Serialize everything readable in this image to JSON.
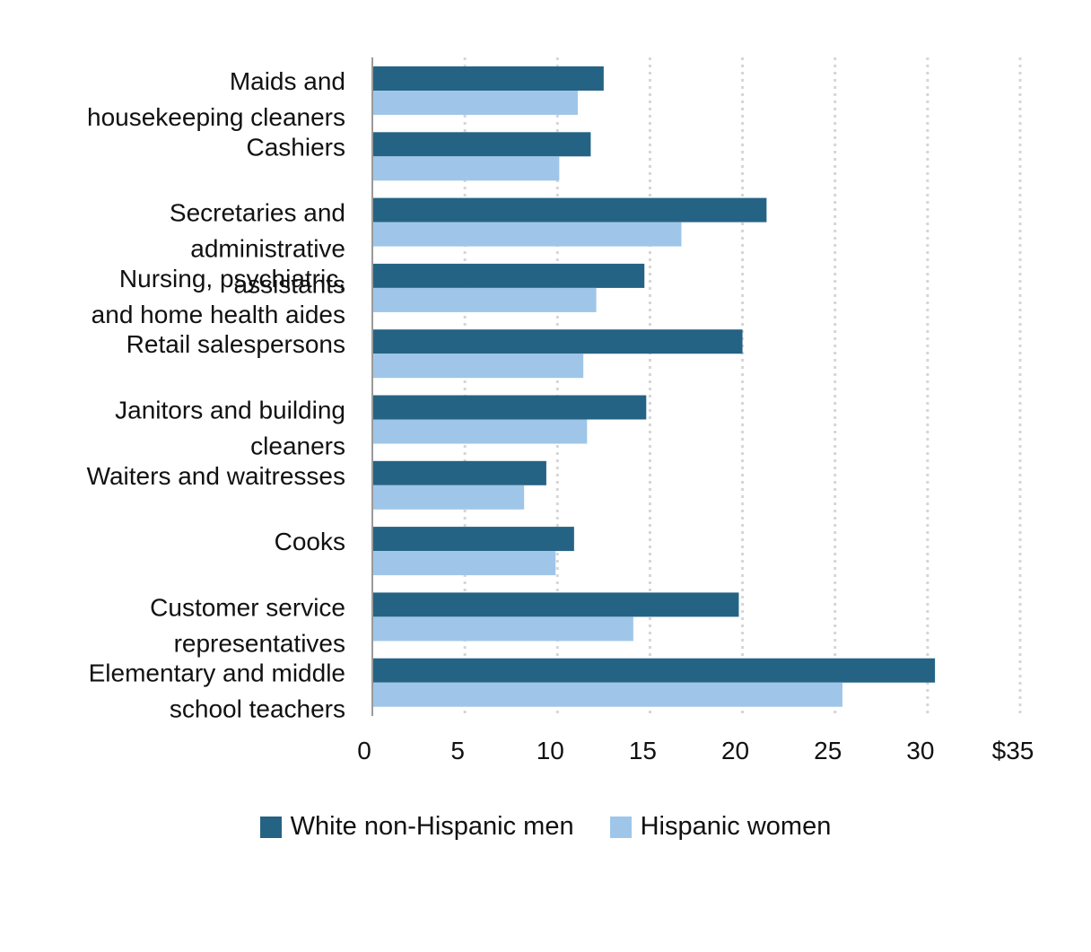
{
  "chart_data": {
    "type": "bar",
    "orientation": "horizontal",
    "categories": [
      [
        "Maids and",
        "housekeeping cleaners"
      ],
      [
        "Cashiers"
      ],
      [
        "Secretaries and",
        "administrative",
        "assistants"
      ],
      [
        "Nursing, psychiatric,",
        "and home health aides"
      ],
      [
        "Retail salespersons"
      ],
      [
        "Janitors and building",
        "cleaners"
      ],
      [
        "Waiters and waitresses"
      ],
      [
        "Cooks"
      ],
      [
        "Customer service",
        "representatives"
      ],
      [
        "Elementary and middle",
        "school teachers"
      ]
    ],
    "series": [
      {
        "name": "White non-Hispanic men",
        "color": "#256384",
        "values": [
          12.5,
          11.8,
          21.3,
          14.7,
          20.0,
          14.8,
          9.4,
          10.9,
          19.8,
          30.4
        ]
      },
      {
        "name": "Hispanic women",
        "color": "#9fc6e8",
        "values": [
          11.1,
          10.1,
          16.7,
          12.1,
          11.4,
          11.6,
          8.2,
          9.9,
          14.1,
          25.4
        ]
      }
    ],
    "xlim": [
      0,
      35
    ],
    "xticks": [
      {
        "value": 0,
        "label": "0"
      },
      {
        "value": 5,
        "label": "5"
      },
      {
        "value": 10,
        "label": "10"
      },
      {
        "value": 15,
        "label": "15"
      },
      {
        "value": 20,
        "label": "20"
      },
      {
        "value": 25,
        "label": "25"
      },
      {
        "value": 30,
        "label": "30"
      },
      {
        "value": 35,
        "label": "$35"
      }
    ],
    "grid": "vertical-dotted",
    "legend_position": "bottom-center"
  }
}
